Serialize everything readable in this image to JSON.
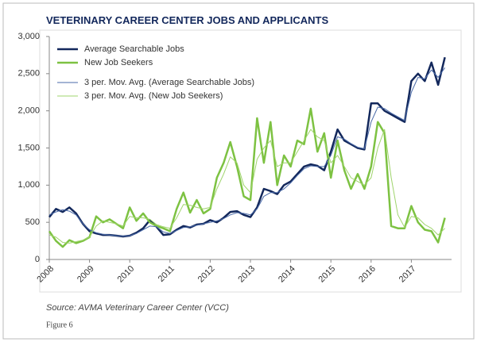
{
  "chart_data": {
    "type": "line",
    "title": "VETERINARY CAREER CENTER JOBS AND APPLICANTS",
    "source": "Source: AVMA Veterinary Career Center (VCC)",
    "figure_label": "Figure 6",
    "categories": [
      "2008",
      null,
      null,
      null,
      null,
      null,
      "2009",
      null,
      null,
      null,
      null,
      null,
      "2010",
      null,
      null,
      null,
      null,
      null,
      "2011",
      null,
      null,
      null,
      null,
      null,
      "2012",
      null,
      null,
      null,
      null,
      null,
      "2013",
      null,
      null,
      null,
      null,
      null,
      "2014",
      null,
      null,
      null,
      null,
      null,
      "2015",
      null,
      null,
      null,
      null,
      null,
      "2016",
      null,
      null,
      null,
      null,
      null,
      "2017",
      null,
      null,
      null,
      null,
      null
    ],
    "ylim": [
      0,
      3000
    ],
    "yticks": [
      0,
      500,
      {
        "value": 1000,
        "label": "1,000"
      },
      {
        "value": 1500,
        "label": "1,500"
      },
      {
        "value": 2000,
        "label": "2,000"
      },
      {
        "value": 2500,
        "label": "2,500"
      },
      {
        "value": 3000,
        "label": "3,000"
      }
    ],
    "legend": "upper left",
    "series": [
      {
        "name": "Average Searchable Jobs",
        "color": "#13285c",
        "width": 2.5,
        "values": [
          570,
          680,
          640,
          700,
          620,
          480,
          380,
          350,
          330,
          330,
          320,
          310,
          320,
          360,
          420,
          530,
          440,
          330,
          340,
          400,
          450,
          430,
          470,
          480,
          530,
          500,
          560,
          640,
          650,
          600,
          570,
          700,
          950,
          920,
          880,
          1000,
          1050,
          1150,
          1250,
          1280,
          1260,
          1200,
          1450,
          1750,
          1600,
          1550,
          1500,
          1480,
          2100,
          2100,
          2000,
          1950,
          1900,
          1850,
          2400,
          2500,
          2400,
          2650,
          2350,
          2720
        ]
      },
      {
        "name": "New Job Seekers",
        "color": "#7dc242",
        "width": 2.5,
        "values": [
          380,
          250,
          170,
          260,
          220,
          250,
          300,
          580,
          500,
          540,
          480,
          420,
          700,
          520,
          620,
          500,
          450,
          420,
          380,
          680,
          900,
          630,
          800,
          620,
          680,
          1100,
          1300,
          1580,
          1250,
          850,
          800,
          1900,
          1300,
          1850,
          1000,
          1400,
          1250,
          1600,
          1550,
          2030,
          1450,
          1700,
          1100,
          1600,
          1200,
          950,
          1150,
          950,
          1250,
          1850,
          1700,
          450,
          420,
          420,
          720,
          500,
          400,
          380,
          230,
          560
        ]
      },
      {
        "name": "3 per. Mov. Avg. (Average Searchable Jobs)",
        "color": "#4a6aa8",
        "width": 1,
        "values": [
          600,
          640,
          670,
          650,
          600,
          480,
          400,
          360,
          340,
          330,
          320,
          315,
          320,
          350,
          400,
          450,
          440,
          370,
          350,
          390,
          430,
          440,
          460,
          480,
          500,
          520,
          550,
          600,
          630,
          620,
          600,
          680,
          850,
          900,
          900,
          950,
          1030,
          1130,
          1220,
          1260,
          1250,
          1250,
          1400,
          1650,
          1620,
          1560,
          1510,
          1490,
          1850,
          2050,
          2030,
          1970,
          1920,
          1870,
          2250,
          2450,
          2430,
          2550,
          2450,
          2580
        ]
      },
      {
        "name": "3 per. Mov. Avg. (New Job Seekers)",
        "color": "#9fd46c",
        "width": 1,
        "values": [
          330,
          300,
          230,
          220,
          240,
          260,
          300,
          450,
          520,
          500,
          480,
          450,
          580,
          560,
          560,
          540,
          470,
          440,
          420,
          560,
          740,
          730,
          700,
          680,
          700,
          950,
          1150,
          1380,
          1300,
          1000,
          900,
          1350,
          1500,
          1600,
          1250,
          1300,
          1300,
          1450,
          1600,
          1750,
          1650,
          1600,
          1300,
          1400,
          1250,
          1100,
          1050,
          1000,
          1100,
          1500,
          1750,
          1100,
          600,
          430,
          580,
          560,
          470,
          420,
          330,
          420
        ]
      }
    ]
  }
}
